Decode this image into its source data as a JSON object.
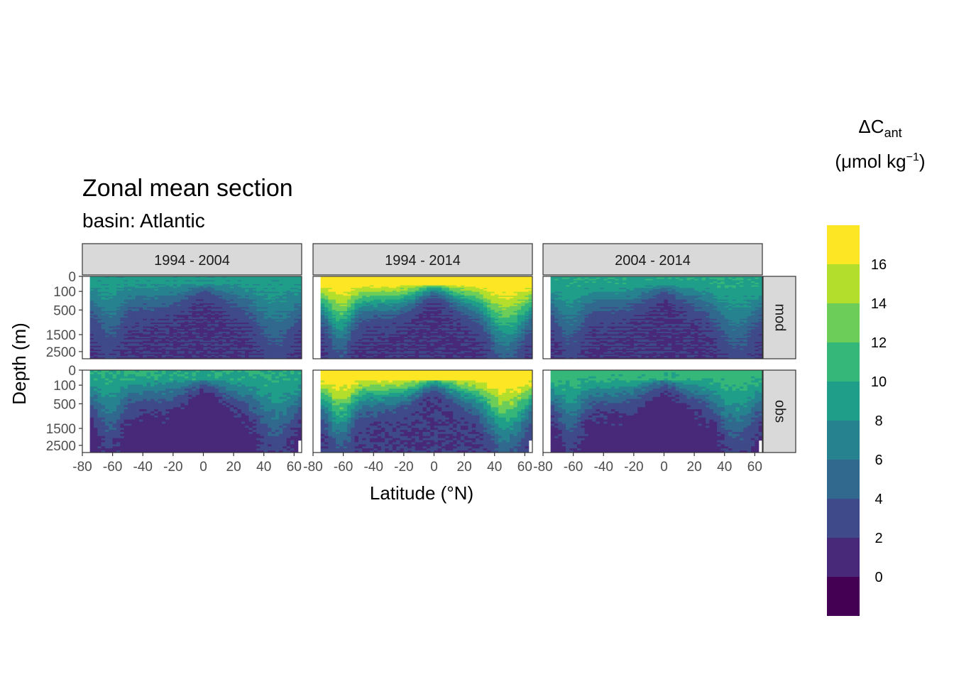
{
  "chart_data": {
    "type": "heatmap",
    "title": "Zonal mean section",
    "subtitle": "basin: Atlantic",
    "xlabel": "Latitude (°N)",
    "ylabel": "Depth (m)",
    "xlim": [
      -80,
      65
    ],
    "x_ticks": [
      "-80",
      "-60",
      "-40",
      "-20",
      "0",
      "20",
      "40",
      "60"
    ],
    "y_ticks": [
      "0",
      "100",
      "500",
      "1500",
      "2500"
    ],
    "y_tick_values": [
      0,
      100,
      500,
      1500,
      2500
    ],
    "y_scale": "sqrt",
    "ylim": [
      3000,
      0
    ],
    "facet_columns": [
      "1994 - 2004",
      "1994 - 2014",
      "2004 - 2014"
    ],
    "facet_rows": [
      "mod",
      "obs"
    ],
    "legend": {
      "title_main": "ΔC",
      "title_sub": "ant",
      "unit": "(μmol kg",
      "unit_sup": "−1",
      "unit_close": ")",
      "position": "right",
      "breaks": [
        -2,
        0,
        2,
        4,
        6,
        8,
        10,
        12,
        14,
        16,
        18,
        20
      ],
      "labels": [
        "0",
        "2",
        "4",
        "6",
        "8",
        "10",
        "12",
        "14",
        "16"
      ],
      "label_values": [
        0,
        2,
        4,
        6,
        8,
        10,
        12,
        14,
        16
      ],
      "colors": [
        "#440154",
        "#482878",
        "#3E4A89",
        "#31688E",
        "#26828E",
        "#1F9E89",
        "#35B779",
        "#6DCD59",
        "#B4DE2C",
        "#FDE725"
      ]
    },
    "panels": {
      "mod": {
        "1994 - 2004": {
          "surface": 9,
          "deep": 2
        },
        "1994 - 2014": {
          "surface": 18,
          "deep": 2
        },
        "2004 - 2014": {
          "surface": 10,
          "deep": 2
        }
      },
      "obs": {
        "1994 - 2004": {
          "surface": 10,
          "deep": 1
        },
        "1994 - 2014": {
          "surface": 18,
          "deep": 2
        },
        "2004 - 2014": {
          "surface": 11,
          "deep": 1
        }
      }
    }
  }
}
